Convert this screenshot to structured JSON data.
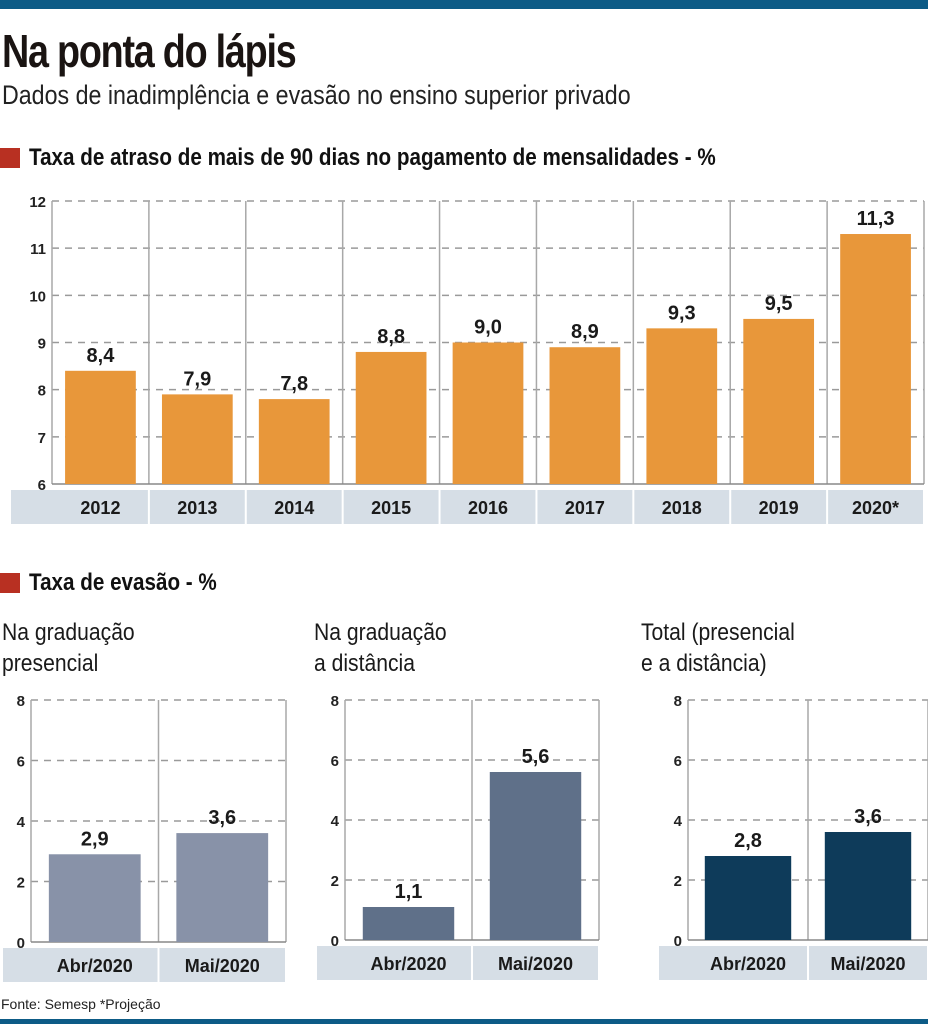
{
  "header": {
    "title": "Na ponta do lápis",
    "subtitle": "Dados de inadimplência e evasão no ensino superior privado"
  },
  "sections": {
    "overdue": "Taxa de atraso de mais de 90 dias no pagamento de mensalidades - %",
    "dropout": "Taxa de evasão - %"
  },
  "colors": {
    "brand_bar": "#0d5b86",
    "section_marker": "#b83022",
    "orange": "#e8973a",
    "light_slate": "#8892a8",
    "slate": "#5f7089",
    "navy": "#0e3b5a",
    "label_band": "#d6dee6"
  },
  "footer": {
    "source": "Fonte: Semesp *Projeção"
  },
  "chart_data": [
    {
      "type": "bar",
      "title": "Taxa de atraso de mais de 90 dias no pagamento de mensalidades - %",
      "categories": [
        "2012",
        "2013",
        "2014",
        "2015",
        "2016",
        "2017",
        "2018",
        "2019",
        "2020*"
      ],
      "values": [
        8.4,
        7.9,
        7.8,
        8.8,
        9.0,
        8.9,
        9.3,
        9.5,
        11.3
      ],
      "value_labels": [
        "8,4",
        "7,9",
        "7,8",
        "8,8",
        "9,0",
        "8,9",
        "9,3",
        "9,5",
        "11,3"
      ],
      "ylim": [
        6,
        12
      ],
      "yticks": [
        6,
        7,
        8,
        9,
        10,
        11,
        12
      ],
      "xlabel": "",
      "ylabel": "",
      "grid": true,
      "color": "#e8973a"
    },
    {
      "type": "bar",
      "title": "Na graduação presencial",
      "title_lines": [
        "Na graduação",
        "presencial"
      ],
      "categories": [
        "Abr/2020",
        "Mai/2020"
      ],
      "values": [
        2.9,
        3.6
      ],
      "value_labels": [
        "2,9",
        "3,6"
      ],
      "ylim": [
        0,
        8
      ],
      "yticks": [
        0,
        2,
        4,
        6,
        8
      ],
      "grid": true,
      "color": "#8892a8"
    },
    {
      "type": "bar",
      "title": "Na graduação a distância",
      "title_lines": [
        "Na graduação",
        "a distância"
      ],
      "categories": [
        "Abr/2020",
        "Mai/2020"
      ],
      "values": [
        1.1,
        5.6
      ],
      "value_labels": [
        "1,1",
        "5,6"
      ],
      "ylim": [
        0,
        8
      ],
      "yticks": [
        0,
        2,
        4,
        6,
        8
      ],
      "grid": true,
      "color": "#5f7089"
    },
    {
      "type": "bar",
      "title": "Total (presencial e a distância)",
      "title_lines": [
        "Total (presencial",
        "e a distância)"
      ],
      "categories": [
        "Abr/2020",
        "Mai/2020"
      ],
      "values": [
        2.8,
        3.6
      ],
      "value_labels": [
        "2,8",
        "3,6"
      ],
      "ylim": [
        0,
        8
      ],
      "yticks": [
        0,
        2,
        4,
        6,
        8
      ],
      "grid": true,
      "color": "#0e3b5a"
    }
  ]
}
